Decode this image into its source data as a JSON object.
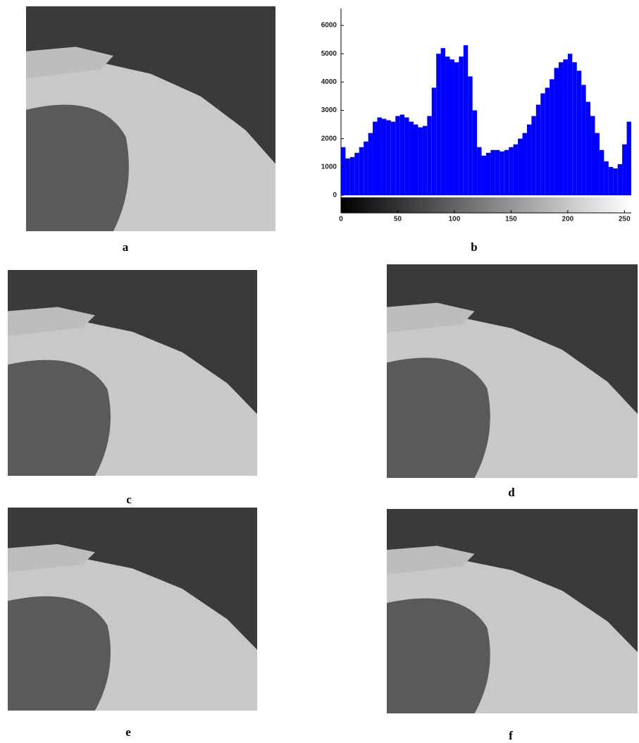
{
  "chart_data": {
    "type": "histogram",
    "bins": [
      0,
      4,
      8,
      12,
      16,
      20,
      24,
      28,
      32,
      36,
      40,
      44,
      48,
      52,
      56,
      60,
      64,
      68,
      72,
      76,
      80,
      84,
      88,
      92,
      96,
      100,
      104,
      108,
      112,
      116,
      120,
      124,
      128,
      132,
      136,
      140,
      144,
      148,
      152,
      156,
      160,
      164,
      168,
      172,
      176,
      180,
      184,
      188,
      192,
      196,
      200,
      204,
      208,
      212,
      216,
      220,
      224,
      228,
      232,
      236,
      240,
      244,
      248,
      252,
      256
    ],
    "values": [
      1700,
      1300,
      1350,
      1500,
      1700,
      1900,
      2200,
      2600,
      2750,
      2700,
      2650,
      2600,
      2800,
      2850,
      2750,
      2600,
      2500,
      2400,
      2450,
      2800,
      3800,
      5000,
      5200,
      4900,
      4800,
      4700,
      4900,
      5300,
      4200,
      3000,
      1700,
      1400,
      1500,
      1600,
      1600,
      1550,
      1600,
      1700,
      1800,
      2000,
      2200,
      2500,
      2800,
      3200,
      3600,
      3800,
      4100,
      4500,
      4700,
      4800,
      5000,
      4700,
      4400,
      3900,
      3300,
      2800,
      2200,
      1600,
      1200,
      1000,
      950,
      1100,
      1800,
      2600
    ],
    "color": "#0000ff",
    "xlim": [
      0,
      256
    ],
    "xticks": [
      0,
      50,
      100,
      150,
      200,
      250
    ],
    "ylim": [
      0,
      6600
    ],
    "yticks": [
      0,
      1000,
      2000,
      3000,
      4000,
      5000,
      6000
    ]
  },
  "panel_labels": [
    "a",
    "b",
    "c",
    "d",
    "e",
    "f"
  ]
}
